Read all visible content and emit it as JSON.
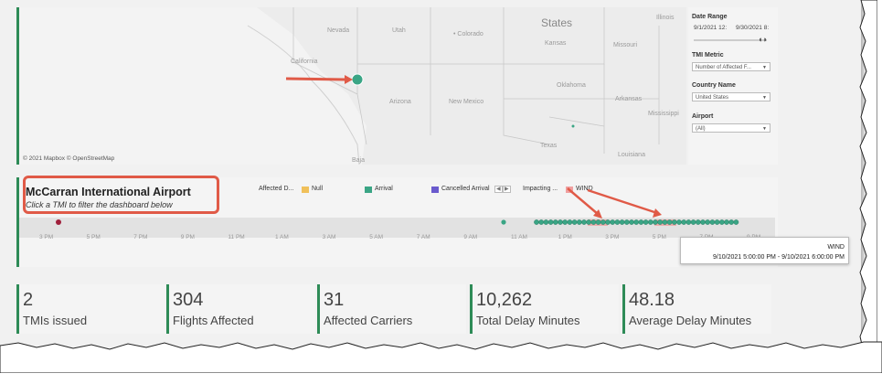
{
  "map": {
    "attribution": "© 2021 Mapbox  © OpenStreetMap",
    "labels": {
      "united_states": "States",
      "nevada": "Nevada",
      "utah": "Utah",
      "colorado": "• Colorado",
      "kansas": "Kansas",
      "missouri": "Missouri",
      "illinois": "Illinois",
      "california": "California",
      "arizona": "Arizona",
      "new_mexico": "New Mexico",
      "oklahoma": "Oklahoma",
      "arkansas": "Arkansas",
      "mississippi": "Mississippi",
      "texas": "Texas",
      "louisiana": "Louisiana",
      "baja": "Baja"
    },
    "marker_color": "#3aa585",
    "arrow_color": "#e05a47"
  },
  "filters": {
    "date_range_label": "Date Range",
    "date_start": "9/1/2021 12:",
    "date_end": "9/30/2021 8:",
    "tmi_metric_label": "TMI Metric",
    "tmi_metric_value": "Number of Affected F...",
    "country_label": "Country Name",
    "country_value": "United States",
    "airport_label": "Airport",
    "airport_value": "(All)"
  },
  "timeline": {
    "airport_name": "McCarran International Airport",
    "instruction": "Click a TMI to filter the dashboard below",
    "legend_affected": "Affected D...",
    "legend_null": "Null",
    "legend_arrival": "Arrival",
    "legend_cancelled": "Cancelled Arrival",
    "legend_impacting": "Impacting ...",
    "legend_wind": "WIND",
    "colors": {
      "null": "#f0c05a",
      "arrival": "#3aa585",
      "cancelled": "#6a5acd",
      "wind": "#f0a0a0",
      "dot": "#3aa585",
      "red_dot": "#a0203c"
    },
    "ticks": [
      "3 PM",
      "5 PM",
      "7 PM",
      "9 PM",
      "11 PM",
      "1 AM",
      "3 AM",
      "5 AM",
      "7 AM",
      "9 AM",
      "11 AM",
      "1 PM",
      "3 PM",
      "5 PM",
      "7 PM",
      "9 PM"
    ]
  },
  "tooltip": {
    "title": "WIND",
    "range": "9/10/2021 5:00:00 PM - 9/10/2021 6:00:00 PM"
  },
  "kpis": [
    {
      "value": "2",
      "label": "TMIs issued"
    },
    {
      "value": "304",
      "label": "Flights Affected"
    },
    {
      "value": "31",
      "label": "Affected Carriers"
    },
    {
      "value": "10,262",
      "label": "Total Delay Minutes"
    },
    {
      "value": "48.18",
      "label": "Average Delay Minutes"
    }
  ]
}
